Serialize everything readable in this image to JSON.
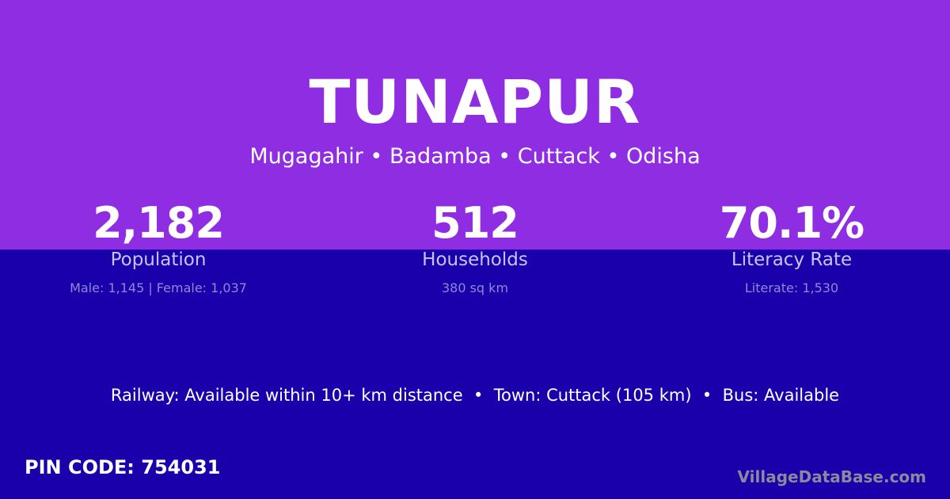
{
  "header": {
    "title": "TUNAPUR",
    "location": "Mugagahir • Badamba • Cuttack • Odisha"
  },
  "stats": [
    {
      "value": "2,182",
      "label": "Population",
      "detail": "Male: 1,145 | Female: 1,037"
    },
    {
      "value": "512",
      "label": "Households",
      "detail": "380 sq km"
    },
    {
      "value": "70.1%",
      "label": "Literacy Rate",
      "detail": "Literate: 1,530"
    }
  ],
  "connectivity": "Railway: Available within 10+ km distance  •  Town: Cuttack (105 km)  •  Bus: Available",
  "pin_code": "PIN CODE: 754031",
  "watermark": "VillageDataBase.com",
  "colors": {
    "top": "#8e2de2",
    "bottom": "#1a00aa"
  }
}
